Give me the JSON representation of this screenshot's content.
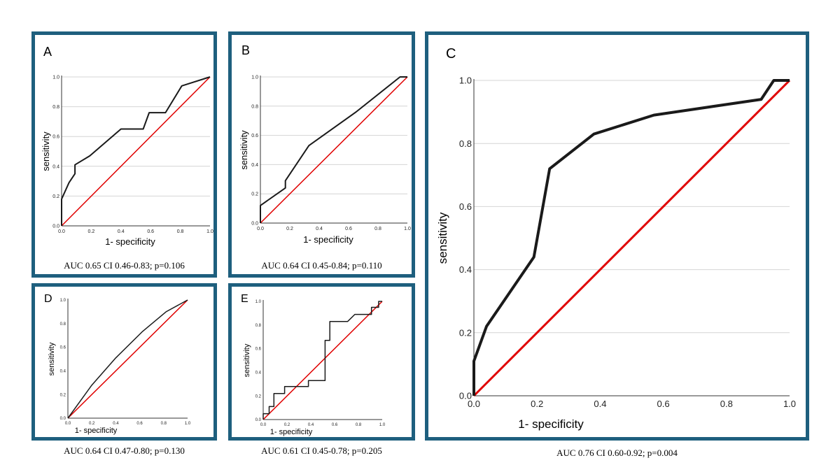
{
  "colors": {
    "frame": "#1e5f7e",
    "roc_curve": "#1a1a1a",
    "reference_line": "#e00000",
    "grid": "#d4d4d4"
  },
  "panels": {
    "A": {
      "letter": "A",
      "caption": "AUC 0.65 CI 0.46-0.83; p=0.106"
    },
    "B": {
      "letter": "B",
      "caption": "AUC 0.64 CI 0.45-0.84; p=0.110"
    },
    "C": {
      "letter": "C",
      "caption": "AUC 0.76 CI 0.60-0.92; p=0.004"
    },
    "D": {
      "letter": "D",
      "caption": "AUC 0.64 CI 0.47-0.80; p=0.130"
    },
    "E": {
      "letter": "E",
      "caption": "AUC 0.61 CI 0.45-0.78; p=0.205"
    }
  },
  "chart_data": [
    {
      "panel": "A",
      "type": "line",
      "xlabel": "1- specificity",
      "ylabel": "sensitivity",
      "xlim": [
        0,
        1
      ],
      "ylim": [
        0,
        1
      ],
      "x_ticks": [
        "0.0",
        "0.2",
        "0.4",
        "0.6",
        "0.8",
        "1.0"
      ],
      "y_ticks": [
        "0.0",
        "0.2",
        "0.4",
        "0.6",
        "0.8",
        "1.0"
      ],
      "grid": "horizontal",
      "series": [
        {
          "role": "roc",
          "points": [
            [
              0,
              0
            ],
            [
              0,
              0.18
            ],
            [
              0.05,
              0.29
            ],
            [
              0.09,
              0.35
            ],
            [
              0.09,
              0.41
            ],
            [
              0.19,
              0.47
            ],
            [
              0.4,
              0.65
            ],
            [
              0.55,
              0.65
            ],
            [
              0.59,
              0.76
            ],
            [
              0.7,
              0.76
            ],
            [
              0.81,
              0.94
            ],
            [
              1,
              1
            ]
          ]
        },
        {
          "role": "reference",
          "points": [
            [
              0,
              0
            ],
            [
              1,
              1
            ]
          ]
        }
      ]
    },
    {
      "panel": "B",
      "type": "line",
      "xlabel": "1- specificity",
      "ylabel": "sensitivity",
      "xlim": [
        0,
        1
      ],
      "ylim": [
        0,
        1
      ],
      "x_ticks": [
        "0.0",
        "0.2",
        "0.4",
        "0.6",
        "0.8",
        "1.0"
      ],
      "y_ticks": [
        "0.0",
        "0.2",
        "0.4",
        "0.6",
        "0.8",
        "1.0"
      ],
      "grid": "horizontal",
      "series": [
        {
          "role": "roc",
          "points": [
            [
              0,
              0
            ],
            [
              0,
              0.12
            ],
            [
              0.17,
              0.24
            ],
            [
              0.17,
              0.29
            ],
            [
              0.33,
              0.53
            ],
            [
              0.65,
              0.76
            ],
            [
              0.95,
              1
            ],
            [
              1,
              1
            ]
          ]
        },
        {
          "role": "reference",
          "points": [
            [
              0,
              0
            ],
            [
              1,
              1
            ]
          ]
        }
      ]
    },
    {
      "panel": "C",
      "type": "line",
      "xlabel": "1- specificity",
      "ylabel": "sensitivity",
      "xlim": [
        0,
        1
      ],
      "ylim": [
        0,
        1
      ],
      "x_ticks": [
        "0.0",
        "0.2",
        "0.4",
        "0.6",
        "0.8",
        "1.0"
      ],
      "y_ticks": [
        "0.0",
        "0.2",
        "0.4",
        "0.6",
        "0.8",
        "1.0"
      ],
      "grid": "horizontal",
      "series": [
        {
          "role": "roc",
          "points": [
            [
              0,
              0
            ],
            [
              0,
              0.11
            ],
            [
              0.04,
              0.22
            ],
            [
              0.19,
              0.44
            ],
            [
              0.24,
              0.72
            ],
            [
              0.38,
              0.83
            ],
            [
              0.57,
              0.89
            ],
            [
              0.91,
              0.94
            ],
            [
              0.95,
              1
            ],
            [
              1,
              1
            ]
          ]
        },
        {
          "role": "reference",
          "points": [
            [
              0,
              0
            ],
            [
              1,
              1
            ]
          ]
        }
      ]
    },
    {
      "panel": "D",
      "type": "line",
      "xlabel": "1- specificity",
      "ylabel": "sensitivity",
      "xlim": [
        0,
        1
      ],
      "ylim": [
        0,
        1
      ],
      "x_ticks": [
        "0.0",
        "0.2",
        "0.4",
        "0.6",
        "0.8",
        "1.0"
      ],
      "y_ticks": [
        "0.0",
        "0.2",
        "0.4",
        "0.6",
        "0.8",
        "1.0"
      ],
      "grid": "none",
      "series": [
        {
          "role": "roc",
          "points": [
            [
              0,
              0
            ],
            [
              0.2,
              0.28
            ],
            [
              0.4,
              0.51
            ],
            [
              0.62,
              0.73
            ],
            [
              0.82,
              0.9
            ],
            [
              1,
              1
            ]
          ]
        },
        {
          "role": "reference",
          "points": [
            [
              0,
              0
            ],
            [
              1,
              1
            ]
          ]
        }
      ]
    },
    {
      "panel": "E",
      "type": "line",
      "xlabel": "1- specificity",
      "ylabel": "sensitivity",
      "xlim": [
        0,
        1
      ],
      "ylim": [
        0,
        1
      ],
      "x_ticks": [
        "0.0",
        "0.2",
        "0.4",
        "0.6",
        "0.8",
        "1.0"
      ],
      "y_ticks": [
        "0.0",
        "0.2",
        "0.4",
        "0.6",
        "0.8",
        "1.0"
      ],
      "grid": "none",
      "series": [
        {
          "role": "roc",
          "points": [
            [
              0,
              0
            ],
            [
              0,
              0.05
            ],
            [
              0.05,
              0.05
            ],
            [
              0.05,
              0.11
            ],
            [
              0.09,
              0.11
            ],
            [
              0.09,
              0.22
            ],
            [
              0.18,
              0.22
            ],
            [
              0.18,
              0.28
            ],
            [
              0.28,
              0.28
            ],
            [
              0.28,
              0.28
            ],
            [
              0.38,
              0.28
            ],
            [
              0.38,
              0.33
            ],
            [
              0.52,
              0.33
            ],
            [
              0.52,
              0.67
            ],
            [
              0.56,
              0.67
            ],
            [
              0.56,
              0.83
            ],
            [
              0.71,
              0.83
            ],
            [
              0.77,
              0.89
            ],
            [
              0.91,
              0.89
            ],
            [
              0.91,
              0.95
            ],
            [
              0.97,
              0.95
            ],
            [
              0.97,
              1
            ],
            [
              1,
              1
            ]
          ]
        },
        {
          "role": "reference",
          "points": [
            [
              0,
              0
            ],
            [
              1,
              1
            ]
          ]
        }
      ]
    }
  ]
}
